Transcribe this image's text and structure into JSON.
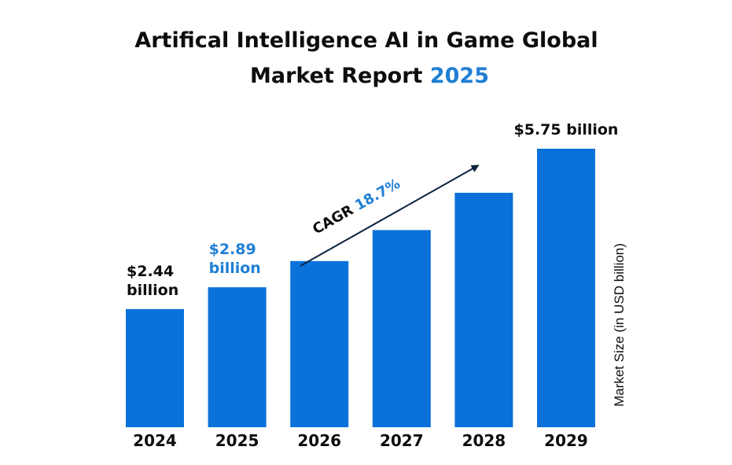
{
  "colors": {
    "bar": "#0B72D9",
    "accent": "#1F7FD4",
    "text": "#0d0d0d",
    "arrow": "#0d2340"
  },
  "title": {
    "line1": "Artifical Intelligence AI in Game Global",
    "line2_prefix": "Market Report ",
    "line2_highlight": "2025"
  },
  "annotations": {
    "cagr_label": "CAGR",
    "cagr_value": "18.7%"
  },
  "chart_data": {
    "type": "bar",
    "title": "Artifical Intelligence AI in Game Global Market Report 2025",
    "categories": [
      "2024",
      "2025",
      "2026",
      "2027",
      "2028",
      "2029"
    ],
    "values": [
      2.44,
      2.89,
      3.43,
      4.07,
      4.84,
      5.75
    ],
    "xlabel": "",
    "ylabel": "Market Size (in USD billion)",
    "ylim": [
      0,
      5.75
    ],
    "grid": false,
    "data_labels": [
      {
        "index": 0,
        "lines": [
          "$2.44",
          "billion"
        ],
        "highlight": false
      },
      {
        "index": 1,
        "lines": [
          "$2.89",
          "billion"
        ],
        "highlight": true
      },
      {
        "index": 5,
        "lines": [
          "$5.75 billion"
        ],
        "highlight": false
      }
    ],
    "annotation": "CAGR 18.7%"
  }
}
